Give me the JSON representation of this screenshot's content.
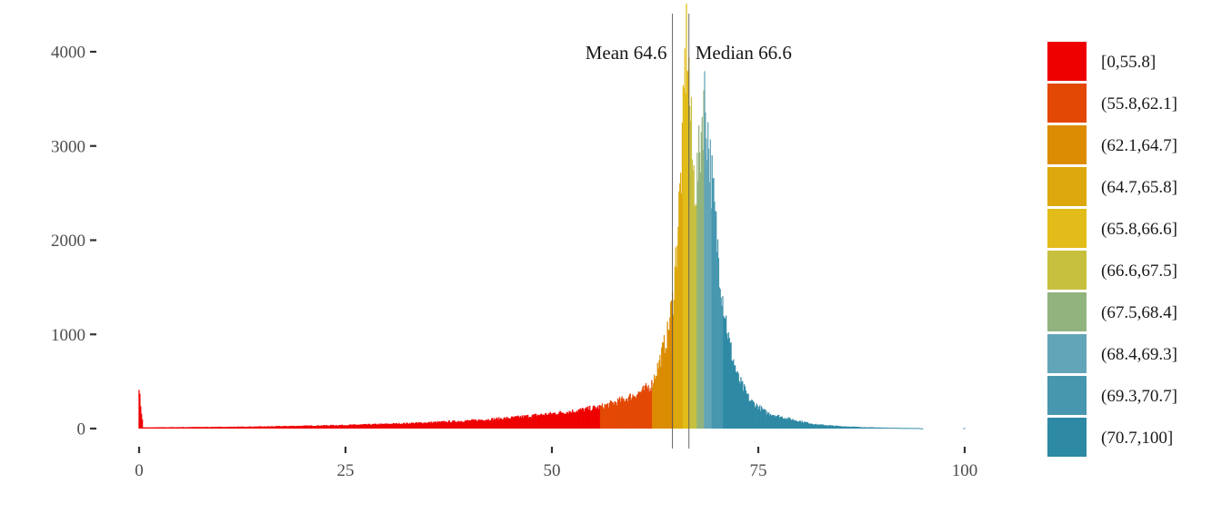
{
  "chart_data": {
    "type": "histogram",
    "title": "",
    "xlabel": "",
    "ylabel": "",
    "xlim": [
      0,
      100
    ],
    "ylim": [
      0,
      4200
    ],
    "x_ticks": [
      0,
      25,
      50,
      75,
      100
    ],
    "y_ticks": [
      0,
      1000,
      2000,
      3000,
      4000
    ],
    "grid": false,
    "reference_lines": [
      {
        "name": "mean",
        "label": "Mean 64.6",
        "value": 64.6
      },
      {
        "name": "median",
        "label": "Median 66.6",
        "value": 66.6
      }
    ],
    "profile_points": [
      [
        0,
        410
      ],
      [
        0.5,
        12
      ],
      [
        5,
        15
      ],
      [
        10,
        18
      ],
      [
        15,
        22
      ],
      [
        20,
        30
      ],
      [
        25,
        38
      ],
      [
        30,
        50
      ],
      [
        35,
        65
      ],
      [
        40,
        85
      ],
      [
        45,
        115
      ],
      [
        50,
        160
      ],
      [
        52,
        180
      ],
      [
        54,
        205
      ],
      [
        55.8,
        230
      ],
      [
        57,
        260
      ],
      [
        59,
        320
      ],
      [
        61,
        400
      ],
      [
        62.1,
        470
      ],
      [
        63,
        700
      ],
      [
        64,
        1000
      ],
      [
        64.7,
        1400
      ],
      [
        65.3,
        2200
      ],
      [
        65.8,
        2900
      ],
      [
        66.1,
        3800
      ],
      [
        66.4,
        4200
      ],
      [
        66.7,
        3500
      ],
      [
        67.1,
        2700
      ],
      [
        67.5,
        2600
      ],
      [
        67.9,
        2900
      ],
      [
        68.2,
        3300
      ],
      [
        68.4,
        3550
      ],
      [
        68.7,
        3350
      ],
      [
        69.3,
        2700
      ],
      [
        70,
        2000
      ],
      [
        70.7,
        1400
      ],
      [
        71.5,
        900
      ],
      [
        72.5,
        550
      ],
      [
        74,
        300
      ],
      [
        76,
        170
      ],
      [
        78,
        120
      ],
      [
        80,
        80
      ],
      [
        82,
        45
      ],
      [
        85,
        25
      ],
      [
        88,
        14
      ],
      [
        92,
        7
      ],
      [
        94.5,
        5
      ],
      [
        95,
        0
      ],
      [
        99.8,
        0
      ],
      [
        100,
        6
      ]
    ],
    "bins": [
      {
        "label": "[0,55.8]",
        "min": 0,
        "max": 55.8,
        "color": "#EE0000"
      },
      {
        "label": "(55.8,62.1]",
        "min": 55.8,
        "max": 62.1,
        "color": "#E34804"
      },
      {
        "label": "(62.1,64.7]",
        "min": 62.1,
        "max": 64.7,
        "color": "#DB8C00"
      },
      {
        "label": "(64.7,65.8]",
        "min": 64.7,
        "max": 65.8,
        "color": "#DCA80E"
      },
      {
        "label": "(65.8,66.6]",
        "min": 65.8,
        "max": 66.6,
        "color": "#E2BC18"
      },
      {
        "label": "(66.6,67.5]",
        "min": 66.6,
        "max": 67.5,
        "color": "#C7C03E"
      },
      {
        "label": "(67.5,68.4]",
        "min": 67.5,
        "max": 68.4,
        "color": "#91B37E"
      },
      {
        "label": "(68.4,69.3]",
        "min": 68.4,
        "max": 69.3,
        "color": "#63A5B8"
      },
      {
        "label": "(69.3,70.7]",
        "min": 69.3,
        "max": 70.7,
        "color": "#4797AF"
      },
      {
        "label": "(70.7,100]",
        "min": 70.7,
        "max": 100,
        "color": "#2E89A4"
      }
    ]
  }
}
